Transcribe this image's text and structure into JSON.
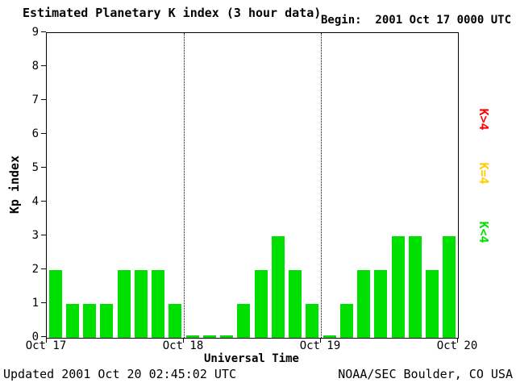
{
  "header": {
    "title": "Estimated Planetary K index (3 hour data)",
    "begin": "Begin:  2001 Oct 17 0000 UTC"
  },
  "footer": {
    "updated": "Updated 2001 Oct 20 02:45:02 UTC",
    "credit": "NOAA/SEC Boulder, CO USA"
  },
  "legend": {
    "items": [
      {
        "label": "K>4",
        "color": "#ff0000"
      },
      {
        "label": "K=4",
        "color": "#ffcc00"
      },
      {
        "label": "K<4",
        "color": "#00e000"
      }
    ]
  },
  "chart_data": {
    "type": "bar",
    "title": "Estimated Planetary K index (3 hour data)",
    "xlabel": "Universal Time",
    "ylabel": "Kp index",
    "ylim": [
      0,
      9
    ],
    "yticks": [
      0,
      1,
      2,
      3,
      4,
      5,
      6,
      7,
      8,
      9
    ],
    "x_tick_labels": [
      "Oct 17",
      "Oct 18",
      "Oct 19",
      "Oct 20"
    ],
    "interval_hours": 3,
    "bars_per_day": 8,
    "bar_color": "#00e000",
    "grid": "dotted vertical day separators only",
    "legend_position": "right, rotated 90deg",
    "values": [
      2,
      1,
      1,
      1,
      2,
      2,
      2,
      1,
      0,
      0,
      0,
      1,
      2,
      3,
      2,
      1,
      0,
      1,
      2,
      2,
      3,
      3,
      2,
      3
    ]
  }
}
